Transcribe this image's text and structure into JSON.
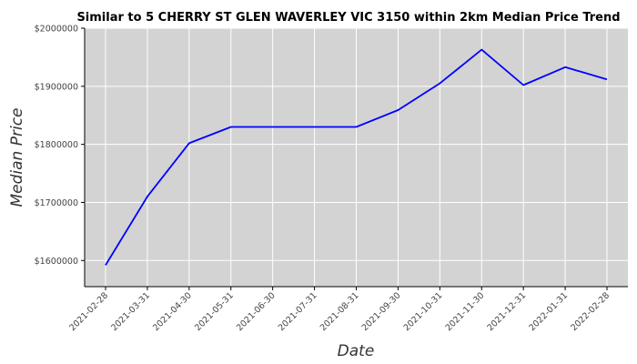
{
  "chart_data": {
    "type": "line",
    "title": "Similar to 5 CHERRY ST GLEN WAVERLEY VIC 3150 within 2km Median Price Trend",
    "xlabel": "Date",
    "ylabel": "Median Price",
    "x": [
      "2021-02-28",
      "2021-03-31",
      "2021-04-30",
      "2021-05-31",
      "2021-06-30",
      "2021-07-31",
      "2021-08-31",
      "2021-09-30",
      "2021-10-31",
      "2021-11-30",
      "2021-12-31",
      "2022-01-31",
      "2022-02-28"
    ],
    "series": [
      {
        "color": "#0000ff",
        "values": [
          1592000,
          1710000,
          1802000,
          1830000,
          1830000,
          1830000,
          1830000,
          1859000,
          1905000,
          1963000,
          1902000,
          1933000,
          1912000
        ]
      }
    ],
    "yticks": [
      1600000,
      1700000,
      1800000,
      1900000,
      2000000
    ],
    "ytick_labels": [
      "$1600000",
      "$1700000",
      "$1800000",
      "$1900000",
      "$2000000"
    ],
    "ylim": [
      1555000,
      2000000
    ],
    "grid": true,
    "colors": {
      "plot_background": "#d3d3d3",
      "grid": "#ffffff",
      "line": "#0000ff"
    }
  }
}
